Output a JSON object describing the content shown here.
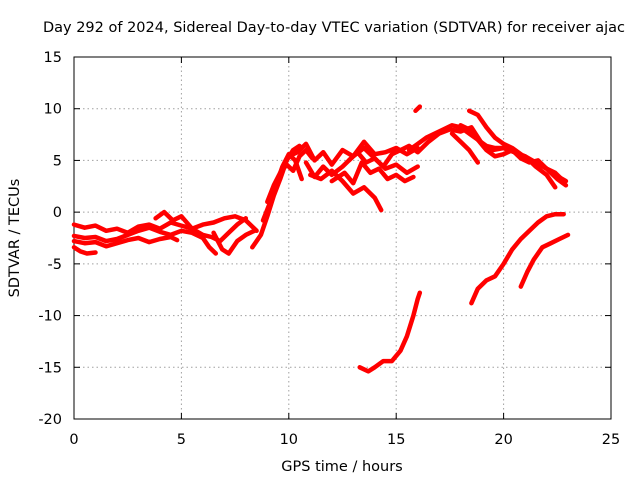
{
  "chart_data": {
    "type": "line",
    "title": "Day 292 of 2024, Sidereal Day-to-day VTEC variation (SDTVAR) for receiver ajac",
    "xlabel": "GPS time / hours",
    "ylabel": "SDTVAR / TECUs",
    "xlim": [
      0,
      25
    ],
    "ylim": [
      -20,
      15
    ],
    "xticks": [
      "0",
      "5",
      "10",
      "15",
      "20",
      "25"
    ],
    "yticks": [
      "-20",
      "-15",
      "-10",
      "-5",
      "0",
      "5",
      "10",
      "15"
    ],
    "grid": true,
    "color": "#ff0000",
    "series": [
      {
        "name": "trace-1",
        "x": [
          0.0,
          0.5,
          1.0,
          1.5,
          2.0,
          2.5,
          3.0,
          3.5,
          4.0,
          4.5,
          5.0,
          5.5,
          6.0,
          6.5,
          7.0,
          7.5,
          8.0,
          8.5
        ],
        "y": [
          -1.2,
          -1.5,
          -1.3,
          -1.8,
          -1.6,
          -2.0,
          -1.4,
          -1.2,
          -1.6,
          -1.0,
          -1.3,
          -1.6,
          -1.2,
          -1.0,
          -0.6,
          -0.4,
          -0.8,
          -1.8
        ]
      },
      {
        "name": "trace-2",
        "x": [
          0.0,
          0.5,
          1.0,
          1.5,
          2.0,
          2.5,
          3.0,
          3.5,
          4.0,
          4.5,
          5.0,
          5.5,
          6.0,
          6.3,
          6.6
        ],
        "y": [
          -2.3,
          -2.5,
          -2.4,
          -2.8,
          -2.6,
          -2.2,
          -1.8,
          -1.5,
          -1.9,
          -2.2,
          -1.8,
          -2.0,
          -2.5,
          -3.4,
          -4.0
        ]
      },
      {
        "name": "trace-3",
        "x": [
          0.0,
          0.5,
          1.0,
          1.5,
          2.0,
          2.5,
          3.0,
          3.5,
          4.0,
          4.5,
          4.8
        ],
        "y": [
          -2.8,
          -3.0,
          -2.9,
          -3.3,
          -3.0,
          -2.7,
          -2.5,
          -2.9,
          -2.6,
          -2.4,
          -2.7
        ]
      },
      {
        "name": "trace-4",
        "x": [
          0.0,
          0.3,
          0.6,
          1.0
        ],
        "y": [
          -3.4,
          -3.8,
          -4.0,
          -3.9
        ]
      },
      {
        "name": "trace-5",
        "x": [
          3.8,
          4.2,
          4.6,
          5.0,
          5.5,
          6.0,
          6.4,
          6.8,
          7.2,
          7.6,
          8.0
        ],
        "y": [
          -0.6,
          0.0,
          -0.8,
          -0.4,
          -1.6,
          -2.2,
          -2.4,
          -2.8,
          -2.0,
          -1.2,
          -0.6
        ]
      },
      {
        "name": "trace-6",
        "x": [
          6.5,
          6.9,
          7.2,
          7.6,
          8.0,
          8.4
        ],
        "y": [
          -2.0,
          -3.6,
          -4.0,
          -2.8,
          -2.2,
          -1.8
        ]
      },
      {
        "name": "trace-7",
        "x": [
          8.3,
          8.7,
          9.0,
          9.3,
          9.6,
          9.9,
          10.2,
          10.5
        ],
        "y": [
          -3.4,
          -2.2,
          -0.4,
          1.6,
          3.2,
          5.0,
          6.0,
          6.4
        ]
      },
      {
        "name": "trace-8",
        "x": [
          8.8,
          9.1,
          9.4,
          9.7,
          10.0,
          10.3,
          10.6
        ],
        "y": [
          -0.8,
          0.8,
          2.6,
          4.4,
          5.6,
          5.0,
          3.2
        ]
      },
      {
        "name": "trace-9",
        "x": [
          9.0,
          9.3,
          9.6,
          9.9,
          10.2,
          10.5,
          10.8,
          11.1
        ],
        "y": [
          1.0,
          2.6,
          3.8,
          4.6,
          4.0,
          5.4,
          6.0,
          5.2
        ]
      },
      {
        "name": "trace-10",
        "x": [
          10.0,
          10.4,
          10.8,
          11.2,
          11.6,
          12.0,
          12.5,
          13.0,
          13.5,
          14.0,
          14.5,
          15.0,
          15.5,
          16.0
        ],
        "y": [
          5.4,
          5.8,
          6.6,
          5.0,
          5.8,
          4.6,
          6.0,
          5.4,
          6.8,
          5.6,
          5.8,
          6.2,
          5.6,
          6.2
        ]
      },
      {
        "name": "trace-11",
        "x": [
          10.8,
          11.2,
          11.6,
          12.0,
          12.5,
          13.0,
          13.5,
          14.0,
          14.5,
          15.0,
          15.5,
          16.0
        ],
        "y": [
          4.8,
          3.4,
          4.4,
          3.6,
          4.4,
          5.4,
          6.2,
          5.2,
          4.2,
          4.6,
          3.8,
          4.4
        ]
      },
      {
        "name": "trace-12",
        "x": [
          11.0,
          11.5,
          12.0,
          12.5,
          13.0,
          13.5,
          14.0,
          14.3
        ],
        "y": [
          3.6,
          3.2,
          4.0,
          3.0,
          1.8,
          2.4,
          1.4,
          0.2
        ]
      },
      {
        "name": "trace-13",
        "x": [
          12.0,
          12.6,
          13.0,
          13.4,
          13.8,
          14.2,
          14.6,
          15.0,
          15.4,
          15.8
        ],
        "y": [
          3.0,
          3.8,
          2.8,
          4.8,
          3.8,
          4.2,
          3.2,
          3.6,
          3.0,
          3.4
        ]
      },
      {
        "name": "trace-14",
        "x": [
          12.8,
          13.2,
          13.6,
          14.0,
          14.4,
          14.8,
          15.2,
          15.6,
          16.0,
          16.5,
          17.0,
          17.5,
          18.0,
          18.5,
          19.0,
          19.5,
          20.0,
          20.5,
          21.0,
          21.5,
          22.0,
          22.5,
          22.9
        ],
        "y": [
          5.0,
          5.8,
          4.8,
          5.2,
          4.4,
          5.6,
          6.0,
          6.4,
          5.8,
          6.8,
          7.6,
          8.0,
          7.8,
          8.2,
          6.6,
          6.0,
          6.2,
          5.8,
          5.4,
          4.8,
          4.2,
          3.2,
          2.6
        ]
      },
      {
        "name": "trace-15",
        "x": [
          15.6,
          16.0,
          16.4,
          16.8,
          17.2,
          17.6,
          18.0,
          18.4,
          18.8,
          19.2,
          19.6,
          20.0,
          20.5,
          21.0,
          21.5,
          22.0,
          22.4
        ],
        "y": [
          6.0,
          6.6,
          7.2,
          7.6,
          8.0,
          8.4,
          8.2,
          7.6,
          7.0,
          6.4,
          6.2,
          6.2,
          5.8,
          5.4,
          4.4,
          3.6,
          2.4
        ]
      },
      {
        "name": "trace-16",
        "x": [
          18.0,
          18.4,
          18.8,
          19.2,
          19.6,
          20.0,
          20.4,
          20.8,
          21.2,
          21.6,
          22.0,
          22.4,
          22.9
        ],
        "y": [
          8.4,
          8.0,
          7.0,
          6.0,
          5.4,
          5.6,
          6.0,
          5.2,
          4.8,
          5.0,
          4.2,
          3.6,
          3.0
        ]
      },
      {
        "name": "trace-17",
        "x": [
          17.6,
          18.0,
          18.4,
          18.8
        ],
        "y": [
          7.6,
          6.8,
          6.0,
          4.8
        ]
      },
      {
        "name": "trace-18",
        "x": [
          18.4,
          18.8,
          19.2,
          19.6,
          20.0,
          20.4,
          20.8,
          21.2,
          21.6,
          22.0,
          22.4,
          22.8
        ],
        "y": [
          9.8,
          9.4,
          8.2,
          7.2,
          6.6,
          6.2,
          5.6,
          5.0,
          4.8,
          4.2,
          3.8,
          3.0
        ]
      },
      {
        "name": "trace-19",
        "x": [
          15.9,
          16.1
        ],
        "y": [
          9.8,
          10.2
        ]
      },
      {
        "name": "trace-20",
        "x": [
          13.3,
          13.7,
          14.0,
          14.4,
          14.8,
          15.2,
          15.5,
          15.8,
          16.0,
          16.1
        ],
        "y": [
          -15.0,
          -15.4,
          -15.0,
          -14.4,
          -14.4,
          -13.4,
          -12.0,
          -10.0,
          -8.4,
          -7.8
        ]
      },
      {
        "name": "trace-21",
        "x": [
          18.5,
          18.8,
          19.2,
          19.6,
          20.0,
          20.4,
          20.8,
          21.2,
          21.6,
          22.0,
          22.4,
          22.8
        ],
        "y": [
          -8.8,
          -7.4,
          -6.6,
          -6.2,
          -5.0,
          -3.6,
          -2.6,
          -1.8,
          -1.0,
          -0.4,
          -0.2,
          -0.2
        ]
      },
      {
        "name": "trace-22",
        "x": [
          20.8,
          21.1,
          21.4,
          21.8,
          22.2,
          22.6,
          23.0
        ],
        "y": [
          -7.2,
          -5.8,
          -4.6,
          -3.4,
          -3.0,
          -2.6,
          -2.2
        ]
      }
    ]
  }
}
